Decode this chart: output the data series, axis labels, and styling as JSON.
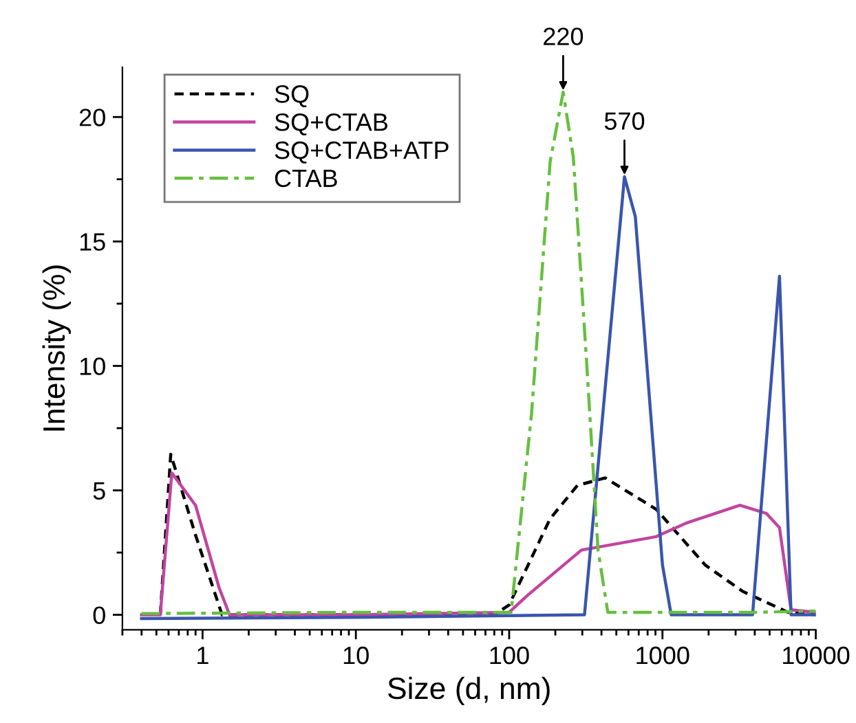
{
  "chart_data": {
    "type": "line",
    "xlabel": "Size (d, nm)",
    "ylabel": "Intensity (%)",
    "log": "x",
    "xlim": [
      0.3,
      10000
    ],
    "xticks": [
      1,
      10,
      100,
      1000,
      10000
    ],
    "ylim": [
      -0.6,
      22
    ],
    "yticks": [
      0,
      5,
      10,
      15,
      20
    ],
    "grid": false,
    "legend": "top left",
    "annotations": [
      {
        "text": "220",
        "x": 225,
        "y": 21.0
      },
      {
        "text": "570",
        "x": 565,
        "y": 17.6
      }
    ],
    "series": [
      {
        "name": "SQ",
        "color": "#000000",
        "line_style": "dashed",
        "x": [
          0.53,
          0.62,
          0.9,
          1.34,
          10,
          80,
          100,
          185,
          279,
          423,
          910,
          1900,
          3340,
          6600,
          10000
        ],
        "values": [
          0,
          6.45,
          3.2,
          0,
          0,
          0,
          0.4,
          3.86,
          5.2,
          5.5,
          4.24,
          2.0,
          0.94,
          0.1,
          0
        ]
      },
      {
        "name": "SQ+CTAB",
        "color": "#c2449f",
        "line_style": "solid",
        "x": [
          0.4,
          0.53,
          0.63,
          0.9,
          1.28,
          1.5,
          10,
          100,
          130,
          296,
          520,
          910,
          1450,
          3200,
          4770,
          5800,
          6900,
          10000
        ],
        "values": [
          0,
          0,
          5.7,
          4.4,
          1.1,
          0,
          0,
          0.1,
          0.75,
          2.6,
          2.87,
          3.14,
          3.7,
          4.4,
          4.07,
          3.5,
          0.2,
          0.1
        ]
      },
      {
        "name": "SQ+CTAB+ATP",
        "color": "#3a55ae",
        "line_style": "solid",
        "x": [
          0.4,
          10,
          310,
          565,
          665,
          1000,
          1140,
          3870,
          5800,
          6900,
          10000
        ],
        "values": [
          -0.15,
          -0.1,
          0,
          17.6,
          16.0,
          2.0,
          0,
          0,
          13.6,
          0,
          0
        ]
      },
      {
        "name": "CTAB",
        "color": "#66bf3f",
        "line_style": "dashdot",
        "x": [
          0.4,
          10,
          103,
          140,
          185,
          225,
          262,
          322,
          380,
          440,
          4000,
          10000
        ],
        "values": [
          0.05,
          0.1,
          0.1,
          8.1,
          18.2,
          21.0,
          18.4,
          9.9,
          2.6,
          0.1,
          0.1,
          0.15
        ]
      }
    ]
  }
}
